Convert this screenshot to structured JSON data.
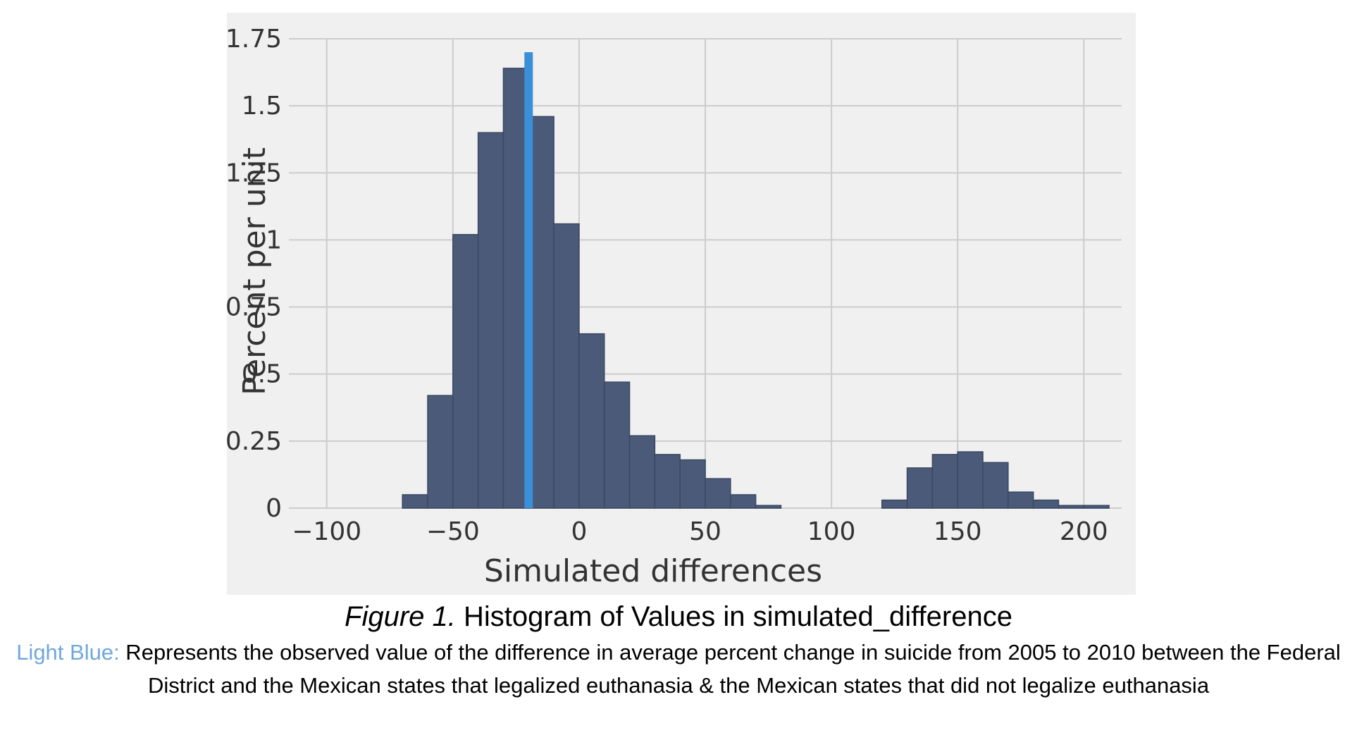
{
  "colors": {
    "panel_background": "#f0f0f0",
    "grid": "#cccccc",
    "bar_fill": "#4a5a78",
    "bar_stroke": "#3a4862",
    "observed_line": "#3b8fd8",
    "caption_highlight": "#6fa8dc"
  },
  "chart_data": {
    "type": "bar",
    "title": "",
    "xlabel": "Simulated differences",
    "ylabel": "Percent per unit",
    "xlim": [
      -115,
      215
    ],
    "ylim": [
      0,
      1.75
    ],
    "grid": true,
    "bin_width": 10,
    "x_ticks": [
      -100,
      -50,
      0,
      50,
      100,
      150,
      200
    ],
    "x_tick_labels": [
      "−100",
      "−50",
      "0",
      "50",
      "100",
      "150",
      "200"
    ],
    "y_ticks": [
      0,
      0.25,
      0.5,
      0.75,
      1,
      1.25,
      1.5,
      1.75
    ],
    "y_tick_labels": [
      "0",
      "0.25",
      "0.5",
      "0.75",
      "1",
      "1.25",
      "1.5",
      "1.75"
    ],
    "bins": [
      {
        "start": -70,
        "end": -60,
        "value": 0.05
      },
      {
        "start": -60,
        "end": -50,
        "value": 0.42
      },
      {
        "start": -50,
        "end": -40,
        "value": 1.02
      },
      {
        "start": -40,
        "end": -30,
        "value": 1.4
      },
      {
        "start": -30,
        "end": -20,
        "value": 1.64
      },
      {
        "start": -20,
        "end": -10,
        "value": 1.46
      },
      {
        "start": -10,
        "end": 0,
        "value": 1.06
      },
      {
        "start": 0,
        "end": 10,
        "value": 0.65
      },
      {
        "start": 10,
        "end": 20,
        "value": 0.47
      },
      {
        "start": 20,
        "end": 30,
        "value": 0.27
      },
      {
        "start": 30,
        "end": 40,
        "value": 0.2
      },
      {
        "start": 40,
        "end": 50,
        "value": 0.18
      },
      {
        "start": 50,
        "end": 60,
        "value": 0.11
      },
      {
        "start": 60,
        "end": 70,
        "value": 0.05
      },
      {
        "start": 70,
        "end": 80,
        "value": 0.01
      },
      {
        "start": 120,
        "end": 130,
        "value": 0.03
      },
      {
        "start": 130,
        "end": 140,
        "value": 0.15
      },
      {
        "start": 140,
        "end": 150,
        "value": 0.2
      },
      {
        "start": 150,
        "end": 160,
        "value": 0.21
      },
      {
        "start": 160,
        "end": 170,
        "value": 0.17
      },
      {
        "start": 170,
        "end": 180,
        "value": 0.06
      },
      {
        "start": 180,
        "end": 190,
        "value": 0.03
      },
      {
        "start": 190,
        "end": 200,
        "value": 0.01
      },
      {
        "start": 200,
        "end": 210,
        "value": 0.01
      }
    ],
    "observed_value": -20
  },
  "caption": {
    "figure_label": "Figure 1.",
    "figure_title": " Histogram of Values in simulated_difference",
    "legend_key": "Light Blue:",
    "legend_text": " Represents the observed value of the difference in average percent change in suicide from 2005 to 2010 between the Federal District and the Mexican states that legalized euthanasia & the Mexican states that did not legalize euthanasia"
  }
}
